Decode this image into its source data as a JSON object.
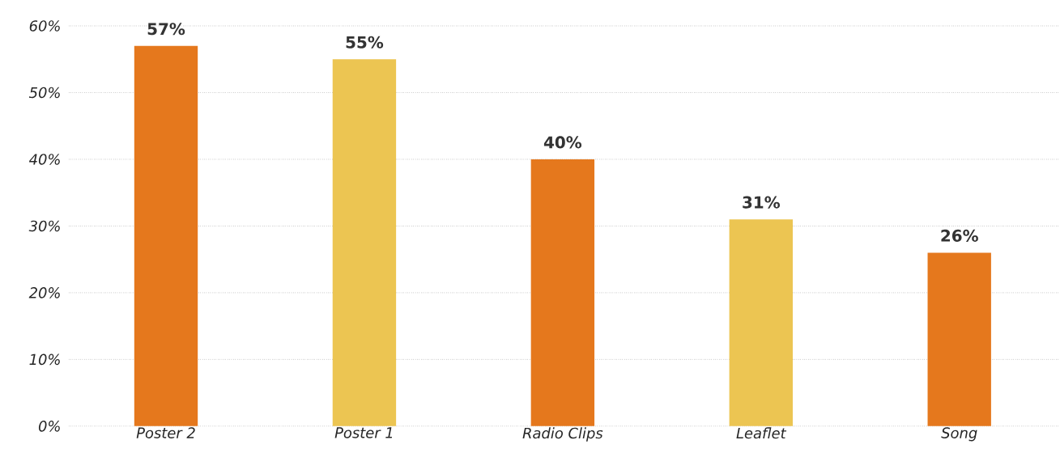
{
  "chart_data": {
    "type": "bar",
    "categories": [
      "Poster 2",
      "Poster 1",
      "Radio Clips",
      "Leaflet",
      "Song"
    ],
    "values": [
      57,
      55,
      40,
      31,
      26
    ],
    "value_labels": [
      "57%",
      "55%",
      "40%",
      "31%",
      "26%"
    ],
    "colors": [
      "#e5781d",
      "#ecc552",
      "#e5781d",
      "#ecc552",
      "#e5781d"
    ],
    "ylim": [
      0,
      60
    ],
    "yticks": [
      {
        "value": 0,
        "label": "0%"
      },
      {
        "value": 10,
        "label": "10%"
      },
      {
        "value": 20,
        "label": "20%"
      },
      {
        "value": 30,
        "label": "30%"
      },
      {
        "value": 40,
        "label": "40%"
      },
      {
        "value": 50,
        "label": "50%"
      },
      {
        "value": 60,
        "label": "60%"
      }
    ],
    "grid": "y"
  }
}
